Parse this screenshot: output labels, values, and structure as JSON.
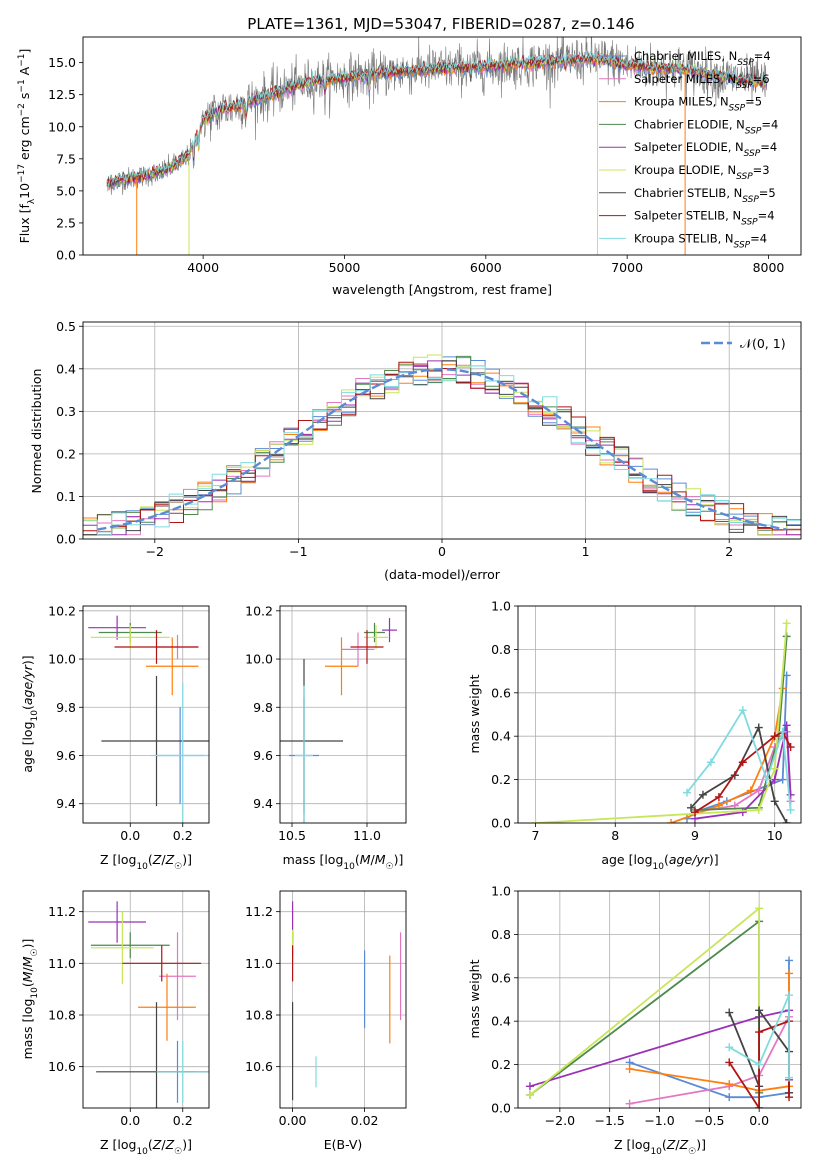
{
  "figure": {
    "title": "PLATE=1361, MJD=53047, FIBERID=0287, z=0.146"
  },
  "colors": {
    "Chabrier MILES": "#5b8bd6",
    "Salpeter MILES": "#e377c2",
    "Kroupa MILES": "#ff7f0e",
    "Chabrier ELODIE": "#4e8a4e",
    "Salpeter ELODIE": "#9a30b8",
    "Kroupa ELODIE": "#c8e65a",
    "Chabrier STELIB": "#444444",
    "Salpeter STELIB": "#b01515",
    "Kroupa STELIB": "#7fdbe0",
    "data": "#777777",
    "gaussian": "#5b8bd6"
  },
  "chart_data": [
    {
      "id": "spectrum",
      "type": "line",
      "xlabel": "wavelength [Angstrom, rest frame]",
      "ylabel": "Flux [f_λ10^-17 erg cm^-2 s^-1 A^-1]",
      "xlim": [
        3150,
        8230
      ],
      "ylim": [
        0,
        17
      ],
      "xticks": [
        4000,
        5000,
        6000,
        7000,
        8000
      ],
      "yticks": [
        0.0,
        2.5,
        5.0,
        7.5,
        10.0,
        12.5,
        15.0
      ],
      "grid": false,
      "legend_position": "top-right",
      "legend": [
        {
          "name": "Chabrier MILES",
          "nssp": 4
        },
        {
          "name": "Salpeter MILES",
          "nssp": 6
        },
        {
          "name": "Kroupa MILES",
          "nssp": 5
        },
        {
          "name": "Chabrier ELODIE",
          "nssp": 4
        },
        {
          "name": "Salpeter ELODIE",
          "nssp": 4
        },
        {
          "name": "Kroupa ELODIE",
          "nssp": 3
        },
        {
          "name": "Chabrier STELIB",
          "nssp": 5
        },
        {
          "name": "Salpeter STELIB",
          "nssp": 4
        },
        {
          "name": "Kroupa STELIB",
          "nssp": 4
        }
      ],
      "continuum": [
        [
          3320,
          5.5
        ],
        [
          3400,
          5.8
        ],
        [
          3500,
          6.0
        ],
        [
          3600,
          6.2
        ],
        [
          3700,
          6.5
        ],
        [
          3800,
          7.0
        ],
        [
          3900,
          7.8
        ],
        [
          4000,
          10.5
        ],
        [
          4100,
          11.3
        ],
        [
          4200,
          11.5
        ],
        [
          4400,
          12.2
        ],
        [
          4600,
          13.0
        ],
        [
          4800,
          13.6
        ],
        [
          5000,
          13.8
        ],
        [
          5200,
          14.1
        ],
        [
          5400,
          14.3
        ],
        [
          5600,
          14.5
        ],
        [
          5800,
          14.6
        ],
        [
          6000,
          14.7
        ],
        [
          6200,
          14.9
        ],
        [
          6400,
          15.0
        ],
        [
          6600,
          15.2
        ],
        [
          6800,
          15.3
        ],
        [
          7000,
          14.8
        ],
        [
          7200,
          14.6
        ],
        [
          7400,
          14.5
        ],
        [
          7600,
          14.0
        ],
        [
          7800,
          13.7
        ],
        [
          8000,
          13.4
        ]
      ]
    },
    {
      "id": "residuals",
      "type": "histogram",
      "xlabel": "(data-model)/error",
      "ylabel": "Normed distribution",
      "xlim": [
        -2.5,
        2.5
      ],
      "ylim": [
        0,
        0.51
      ],
      "xticks": [
        -2,
        -1,
        0,
        1,
        2
      ],
      "yticks": [
        0.0,
        0.1,
        0.2,
        0.3,
        0.4,
        0.5
      ],
      "grid": true,
      "legend_position": "top-right",
      "legend": [
        "𝒩(0, 1)"
      ],
      "gaussian": {
        "mean": 0,
        "sigma": 1
      }
    },
    {
      "id": "age-vs-Z",
      "type": "errorbar",
      "xlabel": "Z [log10(Z/Z☉)]",
      "ylabel": "age [log10(age/yr)]",
      "xlim": [
        -0.18,
        0.3
      ],
      "ylim": [
        9.32,
        10.22
      ],
      "xticks": [
        0.0,
        0.2
      ],
      "yticks": [
        9.4,
        9.6,
        9.8,
        10.0,
        10.2
      ],
      "grid": true,
      "points": [
        {
          "series": "Chabrier MILES",
          "x": 0.19,
          "y": 9.6,
          "xerr": 0.09,
          "yerr": 0.2
        },
        {
          "series": "Salpeter MILES",
          "x": 0.18,
          "y": 10.05,
          "xerr": 0.08,
          "yerr": 0.05
        },
        {
          "series": "Kroupa MILES",
          "x": 0.16,
          "y": 9.97,
          "xerr": 0.1,
          "yerr": 0.12
        },
        {
          "series": "Chabrier ELODIE",
          "x": 0.0,
          "y": 10.11,
          "xerr": 0.12,
          "yerr": 0.04
        },
        {
          "series": "Salpeter ELODIE",
          "x": -0.05,
          "y": 10.13,
          "xerr": 0.11,
          "yerr": 0.05
        },
        {
          "series": "Kroupa ELODIE",
          "x": 0.0,
          "y": 10.09,
          "xerr": 0.15,
          "yerr": 0.05
        },
        {
          "series": "Chabrier STELIB",
          "x": 0.1,
          "y": 9.66,
          "xerr": 0.21,
          "yerr": 0.27
        },
        {
          "series": "Salpeter STELIB",
          "x": 0.1,
          "y": 10.05,
          "xerr": 0.16,
          "yerr": 0.07
        },
        {
          "series": "Kroupa STELIB",
          "x": 0.2,
          "y": 9.6,
          "xerr": 0.12,
          "yerr": 0.3
        }
      ]
    },
    {
      "id": "age-vs-mass",
      "type": "errorbar",
      "xlabel": "mass [log10(M/M☉)]",
      "ylabel": "",
      "xlim": [
        10.42,
        11.26
      ],
      "ylim": [
        9.32,
        10.22
      ],
      "xticks": [
        10.5,
        11.0
      ],
      "yticks": [
        9.4,
        9.6,
        9.8,
        10.0,
        10.2
      ],
      "grid": true,
      "points": [
        {
          "series": "Chabrier MILES",
          "x": 10.58,
          "y": 9.6,
          "xerr": 0.1,
          "yerr": 0.24
        },
        {
          "series": "Salpeter MILES",
          "x": 10.94,
          "y": 10.04,
          "xerr": 0.11,
          "yerr": 0.07
        },
        {
          "series": "Kroupa MILES",
          "x": 10.83,
          "y": 9.97,
          "xerr": 0.11,
          "yerr": 0.12
        },
        {
          "series": "Chabrier ELODIE",
          "x": 11.05,
          "y": 10.11,
          "xerr": 0.07,
          "yerr": 0.04
        },
        {
          "series": "Salpeter ELODIE",
          "x": 11.15,
          "y": 10.12,
          "xerr": 0.05,
          "yerr": 0.05
        },
        {
          "series": "Kroupa ELODIE",
          "x": 11.06,
          "y": 10.09,
          "xerr": 0.08,
          "yerr": 0.05
        },
        {
          "series": "Chabrier STELIB",
          "x": 10.58,
          "y": 9.66,
          "xerr": 0.26,
          "yerr": 0.34
        },
        {
          "series": "Salpeter STELIB",
          "x": 11.0,
          "y": 10.05,
          "xerr": 0.11,
          "yerr": 0.07
        },
        {
          "series": "Kroupa STELIB",
          "x": 10.58,
          "y": 9.6,
          "xerr": 0.06,
          "yerr": 0.29
        }
      ]
    },
    {
      "id": "weight-vs-age",
      "type": "line",
      "xlabel": "age [log10(age/yr)]",
      "ylabel": "mass weight",
      "xlim": [
        6.78,
        10.33
      ],
      "ylim": [
        0,
        1
      ],
      "xticks": [
        7,
        8,
        9,
        10
      ],
      "yticks": [
        0.0,
        0.2,
        0.4,
        0.6,
        0.8,
        1.0
      ],
      "grid": true,
      "series": [
        {
          "name": "Chabrier MILES",
          "x": [
            8.9,
            9.0,
            9.4,
            10.1,
            10.15
          ],
          "y": [
            0.02,
            0.05,
            0.1,
            0.2,
            0.68
          ]
        },
        {
          "name": "Salpeter MILES",
          "x": [
            9.0,
            9.5,
            9.8,
            10.0,
            10.15,
            10.2
          ],
          "y": [
            0.05,
            0.08,
            0.15,
            0.35,
            0.42,
            0.1
          ]
        },
        {
          "name": "Kroupa MILES",
          "x": [
            8.7,
            9.3,
            9.7,
            10.0,
            10.1
          ],
          "y": [
            0.0,
            0.08,
            0.15,
            0.4,
            0.62
          ]
        },
        {
          "name": "Chabrier ELODIE",
          "x": [
            9.0,
            9.8,
            10.05,
            10.15
          ],
          "y": [
            0.06,
            0.07,
            0.4,
            0.86
          ]
        },
        {
          "name": "Salpeter ELODIE",
          "x": [
            9.0,
            9.6,
            10.0,
            10.15,
            10.2
          ],
          "y": [
            0.02,
            0.05,
            0.2,
            0.45,
            0.13
          ]
        },
        {
          "name": "Kroupa ELODIE",
          "x": [
            7.0,
            9.8,
            10.0,
            10.15
          ],
          "y": [
            0.0,
            0.06,
            0.25,
            0.92
          ]
        },
        {
          "name": "Chabrier STELIB",
          "x": [
            8.95,
            9.1,
            9.5,
            9.8,
            10.0,
            10.15
          ],
          "y": [
            0.07,
            0.13,
            0.22,
            0.44,
            0.1,
            0.0
          ]
        },
        {
          "name": "Salpeter STELIB",
          "x": [
            9.0,
            9.3,
            9.6,
            10.0,
            10.1,
            10.2
          ],
          "y": [
            0.05,
            0.12,
            0.28,
            0.4,
            0.42,
            0.35
          ]
        },
        {
          "name": "Kroupa STELIB",
          "x": [
            8.9,
            9.2,
            9.6,
            9.9,
            10.1,
            10.2
          ],
          "y": [
            0.14,
            0.28,
            0.52,
            0.2,
            0.42,
            0.06
          ]
        }
      ]
    },
    {
      "id": "mass-vs-Z",
      "type": "errorbar",
      "xlabel": "Z [log10(Z/Z☉)]",
      "ylabel": "mass [log10(M/M☉)]",
      "xlim": [
        -0.18,
        0.3
      ],
      "ylim": [
        10.44,
        11.28
      ],
      "xticks": [
        0.0,
        0.2
      ],
      "yticks": [
        10.6,
        10.8,
        11.0,
        11.2
      ],
      "grid": true,
      "points": [
        {
          "series": "Chabrier MILES",
          "x": 0.18,
          "y": 10.58,
          "xerr": 0.07,
          "yerr": 0.12
        },
        {
          "series": "Salpeter MILES",
          "x": 0.18,
          "y": 10.95,
          "xerr": 0.07,
          "yerr": 0.17
        },
        {
          "series": "Kroupa MILES",
          "x": 0.14,
          "y": 10.83,
          "xerr": 0.11,
          "yerr": 0.13
        },
        {
          "series": "Chabrier ELODIE",
          "x": 0.0,
          "y": 11.07,
          "xerr": 0.15,
          "yerr": 0.05
        },
        {
          "series": "Salpeter ELODIE",
          "x": -0.05,
          "y": 11.16,
          "xerr": 0.11,
          "yerr": 0.08
        },
        {
          "series": "Kroupa ELODIE",
          "x": -0.03,
          "y": 11.06,
          "xerr": 0.12,
          "yerr": 0.14
        },
        {
          "series": "Chabrier STELIB",
          "x": 0.1,
          "y": 10.58,
          "xerr": 0.23,
          "yerr": 0.27
        },
        {
          "series": "Salpeter STELIB",
          "x": 0.12,
          "y": 11.0,
          "xerr": 0.15,
          "yerr": 0.07
        },
        {
          "series": "Kroupa STELIB",
          "x": 0.2,
          "y": 10.58,
          "xerr": 0.1,
          "yerr": 0.12
        }
      ]
    },
    {
      "id": "mass-vs-EBV",
      "type": "errorbar",
      "xlabel": "E(B-V)",
      "ylabel": "",
      "xlim": [
        -0.0035,
        0.0315
      ],
      "ylim": [
        10.44,
        11.28
      ],
      "xticks": [
        0.0,
        0.02
      ],
      "yticks": [
        10.6,
        10.8,
        11.0,
        11.2
      ],
      "grid": true,
      "points": [
        {
          "series": "Chabrier MILES",
          "x": 0.02,
          "y": 10.9,
          "xerr": 0.0,
          "yerr": 0.15
        },
        {
          "series": "Salpeter MILES",
          "x": 0.03,
          "y": 10.95,
          "xerr": 0.0,
          "yerr": 0.17
        },
        {
          "series": "Kroupa MILES",
          "x": 0.027,
          "y": 10.86,
          "xerr": 0.0,
          "yerr": 0.17
        },
        {
          "series": "Chabrier ELODIE",
          "x": 0.0,
          "y": 11.07,
          "xerr": 0.0,
          "yerr": 0.05
        },
        {
          "series": "Salpeter ELODIE",
          "x": 0.0,
          "y": 11.16,
          "xerr": 0.0,
          "yerr": 0.08
        },
        {
          "series": "Kroupa ELODIE",
          "x": 0.0,
          "y": 11.06,
          "xerr": 0.0,
          "yerr": 0.07
        },
        {
          "series": "Chabrier STELIB",
          "x": 0.0,
          "y": 10.66,
          "xerr": 0.0,
          "yerr": 0.19
        },
        {
          "series": "Salpeter STELIB",
          "x": 0.0,
          "y": 11.0,
          "xerr": 0.0,
          "yerr": 0.07
        },
        {
          "series": "Kroupa STELIB",
          "x": 0.0065,
          "y": 10.58,
          "xerr": 0.0,
          "yerr": 0.06
        }
      ]
    },
    {
      "id": "weight-vs-Z",
      "type": "line",
      "xlabel": "Z [log10(Z/Z☉)]",
      "ylabel": "mass weight",
      "xlim": [
        -2.42,
        0.42
      ],
      "ylim": [
        0,
        1
      ],
      "xticks": [
        -2.0,
        -1.5,
        -1.0,
        -0.5,
        0.0
      ],
      "yticks": [
        0.0,
        0.2,
        0.4,
        0.6,
        0.8,
        1.0
      ],
      "grid": true,
      "series": [
        {
          "name": "Chabrier MILES",
          "x": [
            -1.3,
            -0.3,
            0.0,
            0.3,
            0.3
          ],
          "y": [
            0.21,
            0.05,
            0.05,
            0.07,
            0.68
          ]
        },
        {
          "name": "Salpeter MILES",
          "x": [
            -1.3,
            -0.3,
            0.0,
            0.3
          ],
          "y": [
            0.02,
            0.1,
            0.15,
            0.42
          ]
        },
        {
          "name": "Kroupa MILES",
          "x": [
            -1.3,
            -0.3,
            0.0,
            0.3,
            0.3
          ],
          "y": [
            0.18,
            0.11,
            0.08,
            0.1,
            0.62
          ]
        },
        {
          "name": "Chabrier ELODIE",
          "x": [
            -2.3,
            0.0,
            0.0
          ],
          "y": [
            0.06,
            0.86,
            0.07
          ]
        },
        {
          "name": "Salpeter ELODIE",
          "x": [
            -2.3,
            0.0,
            0.3,
            0.3
          ],
          "y": [
            0.1,
            0.42,
            0.45,
            0.13
          ]
        },
        {
          "name": "Kroupa ELODIE",
          "x": [
            -2.3,
            0.0,
            0.0
          ],
          "y": [
            0.06,
            0.92,
            0.0
          ]
        },
        {
          "name": "Chabrier STELIB",
          "x": [
            -0.3,
            0.0,
            0.0,
            0.3,
            0.3
          ],
          "y": [
            0.44,
            0.1,
            0.45,
            0.26,
            0.07
          ]
        },
        {
          "name": "Salpeter STELIB",
          "x": [
            -0.3,
            0.0,
            0.0,
            0.3,
            0.3
          ],
          "y": [
            0.21,
            0.0,
            0.35,
            0.4,
            0.05
          ]
        },
        {
          "name": "Kroupa STELIB",
          "x": [
            -0.3,
            0.0,
            0.3,
            0.3
          ],
          "y": [
            0.28,
            0.2,
            0.52,
            0.14
          ]
        }
      ]
    }
  ]
}
